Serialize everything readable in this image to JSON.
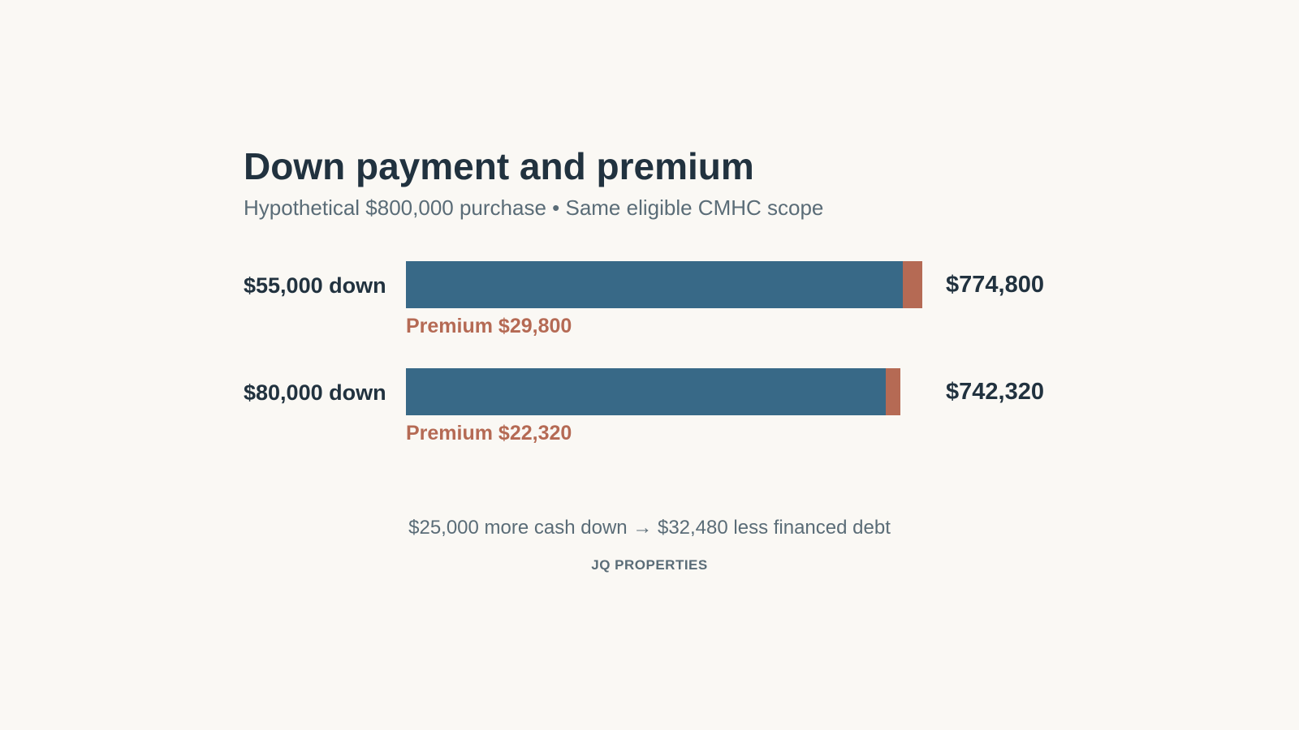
{
  "title": "Down payment and premium",
  "subtitle": "Hypothetical $800,000 purchase • Same eligible CMHC scope",
  "colors": {
    "principal": "#386987",
    "premium": "#b56a54",
    "text": "#21323f",
    "muted": "#5a6c77",
    "background": "#faf8f4"
  },
  "chart_data": {
    "type": "bar",
    "orientation": "horizontal",
    "stacked": true,
    "categories": [
      "$55,000 down",
      "$80,000 down"
    ],
    "series": [
      {
        "name": "",
        "values": [
          745000,
          720000
        ]
      },
      {
        "name": "Premium",
        "values": [
          29800,
          22320
        ]
      }
    ],
    "totals": [
      774800,
      742320
    ],
    "total_labels": [
      "$774,800",
      "$742,320"
    ],
    "premium_labels": [
      "Premium $29,800",
      "Premium $22,320"
    ],
    "xlim": [
      0,
      774800
    ],
    "grid": false
  },
  "footnote": "$25,000 more cash down → $32,480 less financed debt",
  "brand": "JQ PROPERTIES"
}
